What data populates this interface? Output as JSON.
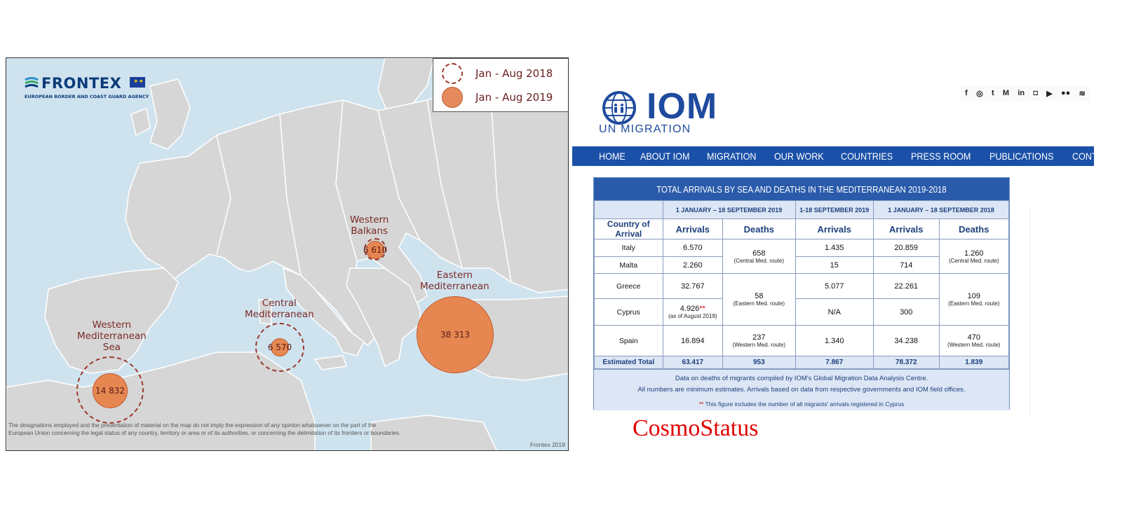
{
  "map": {
    "logo": {
      "name": "FRONTEX",
      "subtitle": "EUROPEAN BORDER AND COAST GUARD AGENCY"
    },
    "legend": [
      {
        "label": "Jan - Aug 2018",
        "style": "dashed"
      },
      {
        "label": "Jan - Aug 2019",
        "style": "filled"
      }
    ],
    "regions": {
      "western_balkans": {
        "line1": "Western",
        "line2": "Balkans",
        "line3": "",
        "value": "6 610"
      },
      "eastern_med": {
        "line1": "Eastern",
        "line2": "Mediterranean",
        "line3": "",
        "value": "38 313"
      },
      "central_med": {
        "line1": "Central",
        "line2": "Mediterranean",
        "line3": "",
        "value": "6 570"
      },
      "western_med": {
        "line1": "Western",
        "line2": "Mediterranean",
        "line3": "Sea",
        "value": "14 832"
      }
    },
    "disclaimer": "The designations employed and the presentation of material on the map do not imply the expression of any opinion whatsoever on the part of the European Union concerning the legal status of any country, territory or area or of its authorities, or concerning the delimitation of its frontiers or boundaries.",
    "credit": "Frontex 2019",
    "colors": {
      "sea": "#cfe3ef",
      "land": "#d6d6d6",
      "bubble": "#e68752",
      "label": "#7a2a26"
    }
  },
  "iom": {
    "logo_word": "IOM",
    "logo_sub": "UN MIGRATION",
    "social_icons": [
      "facebook-icon",
      "instagram-icon",
      "twitter-icon",
      "medium-icon",
      "linkedin-icon",
      "snapchat-icon",
      "youtube-icon",
      "flickr-icon",
      "rss-icon"
    ],
    "social_glyphs": [
      "f",
      "◎",
      "t",
      "M",
      "in",
      "◘",
      "▶",
      "●●",
      "≋"
    ],
    "nav": [
      "HOME",
      "ABOUT IOM",
      "MIGRATION",
      "OUR WORK",
      "COUNTRIES",
      "PRESS ROOM",
      "PUBLICATIONS",
      "CONTACT US"
    ],
    "colors": {
      "brand": "#1f4b9e",
      "nav": "#1a50a8",
      "header": "#2a5bab",
      "light": "#dce6f5"
    },
    "table": {
      "title": "TOTAL ARRIVALS BY SEA AND DEATHS IN THE MEDITERRANEAN 2019-2018",
      "periods": [
        "1 JANUARY – 18 SEPTEMBER 2019",
        "1-18 SEPTEMBER 2019",
        "1 JANUARY – 18 SEPTEMBER 2018"
      ],
      "columns": {
        "country": "Country of Arrival",
        "arrivals": "Arrivals",
        "deaths": "Deaths"
      },
      "rows": {
        "italy": {
          "country": "Italy",
          "arr19": "6.570",
          "sep19": "1.435",
          "arr18": "20.859"
        },
        "malta": {
          "country": "Malta",
          "arr19": "2.260",
          "sep19": "15",
          "arr18": "714"
        },
        "greece": {
          "country": "Greece",
          "arr19": "32.767",
          "sep19": "5.077",
          "arr18": "22.261"
        },
        "cyprus": {
          "country": "Cyprus",
          "arr19": "4.926",
          "arr19_mark": "**",
          "arr19_note": "(as of August 2019)",
          "sep19": "N/A",
          "arr18": "300"
        },
        "spain": {
          "country": "Spain",
          "arr19": "16.894",
          "sep19": "1.340",
          "arr18": "34.238"
        }
      },
      "deaths": {
        "central19": {
          "value": "658",
          "route": "(Central Med. route)"
        },
        "eastern19": {
          "value": "58",
          "route": "(Eastern Med. route)"
        },
        "western19": {
          "value": "237",
          "route": "(Western Med. route)"
        },
        "central18": {
          "value": "1.260",
          "route": "(Central Med. route)"
        },
        "eastern18": {
          "value": "109",
          "route": "(Eastern Med. route)"
        },
        "western18": {
          "value": "470",
          "route": "(Western Med. route)"
        }
      },
      "total": {
        "label": "Estimated Total",
        "arr19": "63.417",
        "deaths19": "953",
        "sep19": "7.867",
        "arr18": "78.372",
        "deaths18": "1.839"
      },
      "notes": {
        "line1": "Data on deaths of migrants compiled by IOM's Global Migration Data Analysis Centre.",
        "line2": "All numbers are minimum estimates. Arrivals based on data from respective governments and IOM field offices.",
        "line3_mark": "**",
        "line3": "This figure includes the number of all migrants' arrivals registered in Cyprus"
      }
    }
  },
  "watermark": "CosmoStatus"
}
